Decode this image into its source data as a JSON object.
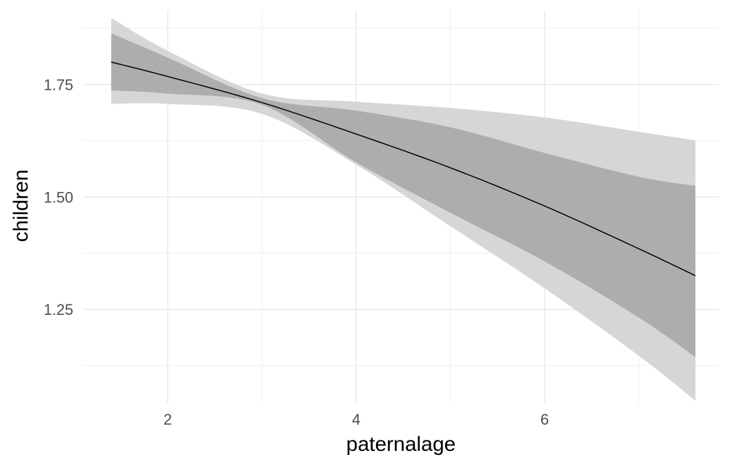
{
  "chart_data": {
    "type": "line",
    "xlabel": "paternalage",
    "ylabel": "children",
    "xlim": [
      1.1,
      7.85
    ],
    "ylim": [
      1.04,
      1.915
    ],
    "x_ticks": [
      2,
      4,
      6
    ],
    "x_tick_labels": [
      "2",
      "4",
      "6"
    ],
    "y_ticks": [
      1.25,
      1.5,
      1.75
    ],
    "y_tick_labels": [
      "1.25",
      "1.50",
      "1.75"
    ],
    "grid": true,
    "colors": {
      "line": "#000000",
      "inner_band": "#adadad",
      "outer_band": "#d6d6d6",
      "grid": "#ebebeb"
    },
    "series": [
      {
        "x": [
          1.4,
          2.0,
          3.0,
          4.0,
          5.0,
          6.0,
          7.0,
          7.6
        ],
        "values": [
          1.8,
          1.768,
          1.71,
          1.64,
          1.565,
          1.48,
          1.385,
          1.325
        ],
        "band_inner_lower": [
          1.737,
          1.73,
          1.705,
          1.577,
          1.465,
          1.357,
          1.232,
          1.144
        ],
        "band_inner_upper": [
          1.864,
          1.81,
          1.72,
          1.692,
          1.655,
          1.598,
          1.545,
          1.525
        ],
        "band_outer_lower": [
          1.707,
          1.707,
          1.685,
          1.572,
          1.435,
          1.297,
          1.147,
          1.047
        ],
        "band_outer_upper": [
          1.898,
          1.825,
          1.73,
          1.712,
          1.698,
          1.677,
          1.645,
          1.626
        ]
      }
    ]
  }
}
